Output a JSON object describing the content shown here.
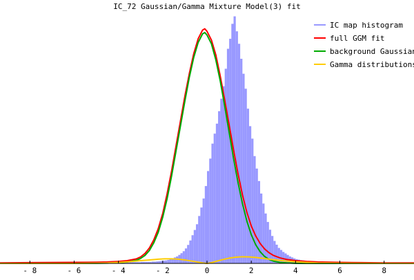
{
  "chart_data": {
    "type": "bar",
    "title": "IC_72 Gaussian/Gamma Mixture Model(3) fit",
    "xlabel": "",
    "ylabel": "",
    "xlim": [
      -9.35,
      9.35
    ],
    "x_ticks": [
      -8,
      -6,
      -4,
      -2,
      0,
      2,
      4,
      6,
      8
    ],
    "x_tick_labels": [
      "- 8",
      "- 6",
      "- 4",
      "- 2",
      "0",
      "2",
      "4",
      "6",
      "8"
    ],
    "ylim": [
      0,
      1.0
    ],
    "grid": false,
    "legend_position": "top-right",
    "histogram": {
      "name": "IC map histogram",
      "color": "#9999ff",
      "bin_width": 0.1,
      "bin_start": -5.0,
      "values": [
        0.003,
        0.003,
        0.002,
        0.003,
        0.003,
        0.003,
        0.003,
        0.003,
        0.003,
        0.004,
        0.004,
        0.004,
        0.004,
        0.004,
        0.004,
        0.005,
        0.005,
        0.005,
        0.005,
        0.005,
        0.006,
        0.006,
        0.006,
        0.006,
        0.006,
        0.007,
        0.007,
        0.008,
        0.009,
        0.01,
        0.011,
        0.012,
        0.014,
        0.017,
        0.02,
        0.024,
        0.028,
        0.034,
        0.041,
        0.049,
        0.06,
        0.074,
        0.092,
        0.113,
        0.134,
        0.157,
        0.19,
        0.224,
        0.26,
        0.31,
        0.37,
        0.42,
        0.48,
        0.52,
        0.56,
        0.61,
        0.66,
        0.71,
        0.78,
        0.86,
        0.9,
        0.96,
        0.99,
        0.93,
        0.88,
        0.82,
        0.76,
        0.7,
        0.62,
        0.55,
        0.5,
        0.43,
        0.38,
        0.33,
        0.28,
        0.24,
        0.2,
        0.166,
        0.135,
        0.11,
        0.09,
        0.075,
        0.062,
        0.054,
        0.046,
        0.04,
        0.034,
        0.028,
        0.024,
        0.02,
        0.017,
        0.015,
        0.013,
        0.012,
        0.01,
        0.009,
        0.008,
        0.007,
        0.007,
        0.006,
        0.006,
        0.005,
        0.005,
        0.005,
        0.004,
        0.004,
        0.004,
        0.004,
        0.003,
        0.003,
        0.003,
        0.003,
        0.003,
        0.003,
        0.002,
        0.002,
        0.002,
        0.002,
        0.002,
        0.002,
        0.002
      ]
    },
    "series": [
      {
        "name": "full GGM fit",
        "color": "#ff0000",
        "x": [
          -9.35,
          -8,
          -6,
          -5,
          -4.5,
          -4,
          -3.6,
          -3.2,
          -3,
          -2.8,
          -2.6,
          -2.4,
          -2.2,
          -2,
          -1.8,
          -1.6,
          -1.4,
          -1.2,
          -1,
          -0.8,
          -0.6,
          -0.4,
          -0.2,
          -0.1,
          0,
          0.2,
          0.4,
          0.6,
          0.8,
          1,
          1.2,
          1.4,
          1.6,
          1.8,
          2,
          2.2,
          2.4,
          2.6,
          2.8,
          3,
          3.3,
          3.6,
          4,
          4.5,
          5,
          6,
          7,
          8,
          9.35
        ],
        "y": [
          0.002,
          0.003,
          0.004,
          0.005,
          0.006,
          0.008,
          0.011,
          0.018,
          0.026,
          0.04,
          0.062,
          0.095,
          0.14,
          0.2,
          0.28,
          0.37,
          0.47,
          0.57,
          0.67,
          0.76,
          0.84,
          0.9,
          0.935,
          0.94,
          0.93,
          0.895,
          0.835,
          0.75,
          0.655,
          0.555,
          0.455,
          0.36,
          0.275,
          0.205,
          0.15,
          0.11,
          0.08,
          0.058,
          0.043,
          0.032,
          0.022,
          0.016,
          0.011,
          0.008,
          0.006,
          0.004,
          0.003,
          0.002,
          0.002
        ]
      },
      {
        "name": "background Gaussian",
        "color": "#00aa00",
        "x": [
          -9.35,
          -6,
          -5,
          -4.5,
          -4,
          -3.6,
          -3.2,
          -3,
          -2.8,
          -2.6,
          -2.4,
          -2.2,
          -2,
          -1.8,
          -1.6,
          -1.4,
          -1.2,
          -1,
          -0.8,
          -0.6,
          -0.4,
          -0.2,
          -0.1,
          0,
          0.2,
          0.4,
          0.6,
          0.8,
          1,
          1.2,
          1.4,
          1.6,
          1.8,
          2,
          2.2,
          2.4,
          2.6,
          2.8,
          3,
          3.3,
          3.6,
          4,
          5,
          6,
          9.35
        ],
        "y": [
          0,
          0,
          0.0005,
          0.001,
          0.003,
          0.006,
          0.012,
          0.02,
          0.032,
          0.052,
          0.083,
          0.125,
          0.185,
          0.26,
          0.35,
          0.45,
          0.55,
          0.65,
          0.745,
          0.825,
          0.885,
          0.92,
          0.925,
          0.915,
          0.88,
          0.815,
          0.73,
          0.63,
          0.525,
          0.42,
          0.325,
          0.24,
          0.17,
          0.115,
          0.075,
          0.047,
          0.028,
          0.016,
          0.009,
          0.004,
          0.002,
          0.0005,
          0,
          0,
          0
        ]
      },
      {
        "name": "Gamma distributions",
        "color": "#ffcc00",
        "x": [
          -9.35,
          -6,
          -5,
          -4.5,
          -4,
          -3.5,
          -3,
          -2.6,
          -2.2,
          -1.9,
          -1.6,
          -1.3,
          -1,
          -0.7,
          -0.4,
          -0.2,
          -0.05,
          0,
          0.05,
          0.2,
          0.4,
          0.7,
          1,
          1.3,
          1.6,
          1.9,
          2.2,
          2.6,
          3,
          3.5,
          4,
          4.5,
          5,
          6,
          9.35
        ],
        "y": [
          0,
          0,
          0.001,
          0.002,
          0.004,
          0.007,
          0.011,
          0.014,
          0.017,
          0.0185,
          0.0185,
          0.017,
          0.014,
          0.0095,
          0.005,
          0.002,
          0.0005,
          0,
          0.0005,
          0.003,
          0.008,
          0.015,
          0.021,
          0.025,
          0.0265,
          0.026,
          0.024,
          0.0195,
          0.015,
          0.01,
          0.0065,
          0.004,
          0.002,
          0.001,
          0
        ]
      }
    ]
  }
}
